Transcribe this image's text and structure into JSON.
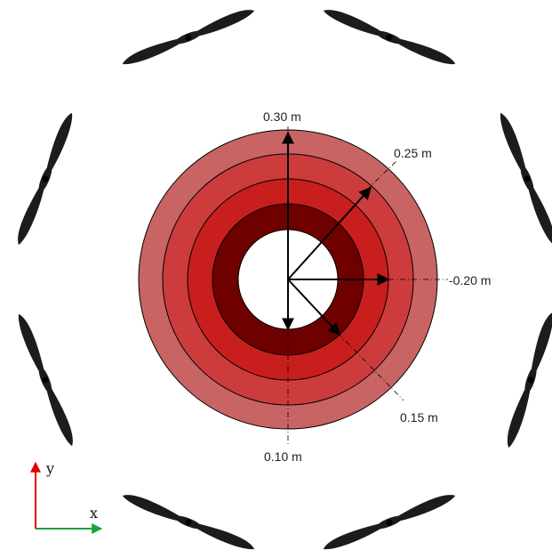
{
  "diagram": {
    "radius_labels": {
      "r030": "0.30 m",
      "r025": "0.25 m",
      "r020": "-0.20 m",
      "r015": "0.15 m",
      "r010": "0.10 m"
    },
    "axes": {
      "x_label": "x",
      "y_label": "y"
    },
    "colors": {
      "ring_030": "#c86464",
      "ring_025": "#cd3c3c",
      "ring_020": "#c81e1e",
      "ring_015": "#6e0000",
      "hole": "#ffffff",
      "arrow": "#000000",
      "propeller": "#1c1c1c",
      "x_axis": "#1aa33a",
      "y_axis": "#e00000"
    },
    "propeller_icon": "propeller-blade-icon"
  }
}
